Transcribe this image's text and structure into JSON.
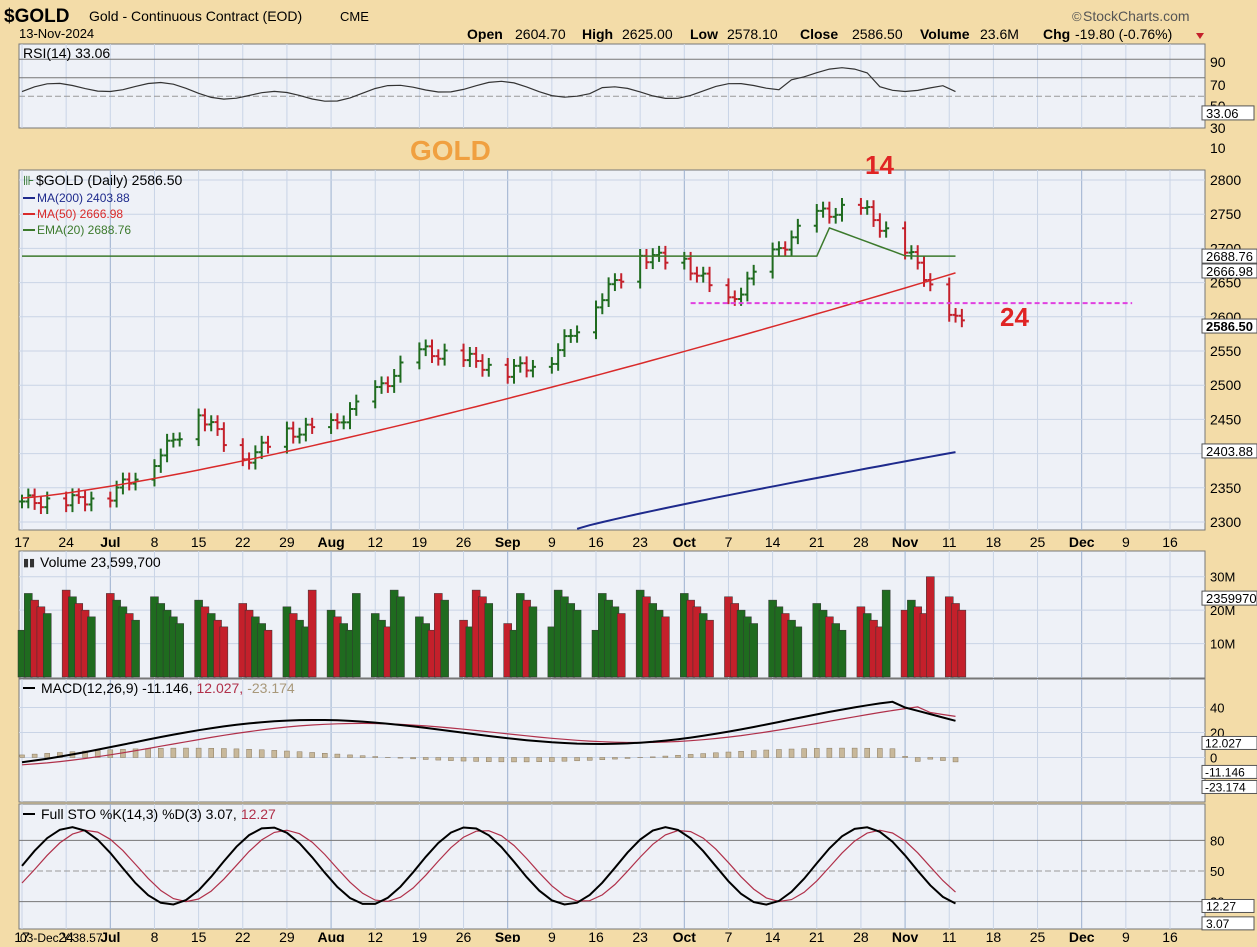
{
  "header": {
    "symbol": "$GOLD",
    "name": "Gold - Continuous Contract (EOD)",
    "exchange": "CME",
    "date": "13-Nov-2024",
    "brand": "StockCharts.com",
    "quote": {
      "open_label": "Open",
      "open": "2604.70",
      "high_label": "High",
      "high": "2625.00",
      "low_label": "Low",
      "low": "2578.10",
      "close_label": "Close",
      "close": "2586.50",
      "volume_label": "Volume",
      "volume": "23.6M",
      "chg_label": "Chg",
      "chg": "-19.80 (-0.76%)"
    }
  },
  "annotations": {
    "gold_label": "GOLD",
    "peak_label": "14",
    "support_label": "24"
  },
  "rsi_panel": {
    "legend": "RSI(14) 33.06",
    "last": "33.06",
    "ticks": [
      "90",
      "70",
      "50",
      "30",
      "10"
    ]
  },
  "price_panel": {
    "legend": "$GOLD (Daily) 2586.50",
    "ma200": "MA(200) 2403.88",
    "ma50": "MA(50) 2666.98",
    "ema20": "EMA(20) 2688.76",
    "ticks": [
      "2800",
      "2750",
      "2700",
      "2650",
      "2600",
      "2550",
      "2500",
      "2450",
      "2400",
      "2350",
      "2300"
    ],
    "right_labels": [
      "2688.76",
      "2666.98",
      "2586.50",
      "2403.88"
    ]
  },
  "volume_panel": {
    "legend": "Volume 23,599,700",
    "ticks": [
      "30M",
      "20M",
      "10M"
    ],
    "last": "23599700"
  },
  "macd_panel": {
    "legend_main": "MACD(12,26,9) -11.146,",
    "legend_signal": "12.027,",
    "legend_hist": "-23.174",
    "ticks": [
      "40",
      "20",
      "0"
    ],
    "right_labels": [
      "12.027",
      "-11.146",
      "-23.174"
    ]
  },
  "sto_panel": {
    "legend_main": "Full STO %K(14,3) %D(3) 3.07,",
    "legend_d": "12.27",
    "ticks": [
      "80",
      "50",
      "20"
    ],
    "right_labels": [
      "12.27",
      "3.07"
    ]
  },
  "x_axis": {
    "labels": [
      "17",
      "24",
      "Jul",
      "8",
      "15",
      "22",
      "29",
      "Aug",
      "12",
      "19",
      "26",
      "Sep",
      "9",
      "16",
      "23",
      "Oct",
      "7",
      "14",
      "21",
      "28",
      "Nov",
      "11",
      "18",
      "25",
      "Dec",
      "9",
      "16"
    ],
    "bottom_readout": "03-Dec Y:38.57"
  },
  "colors": {
    "background": "#f3dca8",
    "panel": "#eef1f7",
    "up_bar": "#1f6b1f",
    "down_bar": "#c4202b",
    "ma200": "#1e2a8c",
    "ma50": "#d92a2a",
    "ema20": "#3c7a2c",
    "support_line": "#e040e0",
    "gold_label": "#f0a040",
    "annotation": "#e02424"
  },
  "chart_data": {
    "type": "ohlc",
    "title": "$GOLD Gold - Continuous Contract (EOD) CME",
    "x_range": [
      "2024-06-17",
      "2024-11-13"
    ],
    "ylim": [
      2290,
      2810
    ],
    "price_close_weekly": [
      {
        "date": "2024-06-17",
        "close": 2330
      },
      {
        "date": "2024-06-24",
        "close": 2330
      },
      {
        "date": "2024-07-01",
        "close": 2340
      },
      {
        "date": "2024-07-08",
        "close": 2390
      },
      {
        "date": "2024-07-15",
        "close": 2460
      },
      {
        "date": "2024-07-22",
        "close": 2390
      },
      {
        "date": "2024-07-29",
        "close": 2430
      },
      {
        "date": "2024-08-05",
        "close": 2440
      },
      {
        "date": "2024-08-12",
        "close": 2490
      },
      {
        "date": "2024-08-19",
        "close": 2550
      },
      {
        "date": "2024-08-26",
        "close": 2540
      },
      {
        "date": "2024-09-02",
        "close": 2520
      },
      {
        "date": "2024-09-09",
        "close": 2540
      },
      {
        "date": "2024-09-16",
        "close": 2620
      },
      {
        "date": "2024-09-23",
        "close": 2690
      },
      {
        "date": "2024-09-30",
        "close": 2680
      },
      {
        "date": "2024-10-07",
        "close": 2620
      },
      {
        "date": "2024-10-14",
        "close": 2690
      },
      {
        "date": "2024-10-21",
        "close": 2750
      },
      {
        "date": "2024-10-28",
        "close": 2760
      },
      {
        "date": "2024-11-04",
        "close": 2700
      },
      {
        "date": "2024-11-11",
        "close": 2586.5
      }
    ],
    "support_level": 2620,
    "ma200_last": 2403.88,
    "ma50_last": 2666.98,
    "ema20_last": 2688.76,
    "rsi_last": 33.06,
    "macd_last": -11.146,
    "macd_signal_last": 12.027,
    "macd_hist_last": -23.174,
    "sto_k_last": 3.07,
    "sto_d_last": 12.27
  }
}
